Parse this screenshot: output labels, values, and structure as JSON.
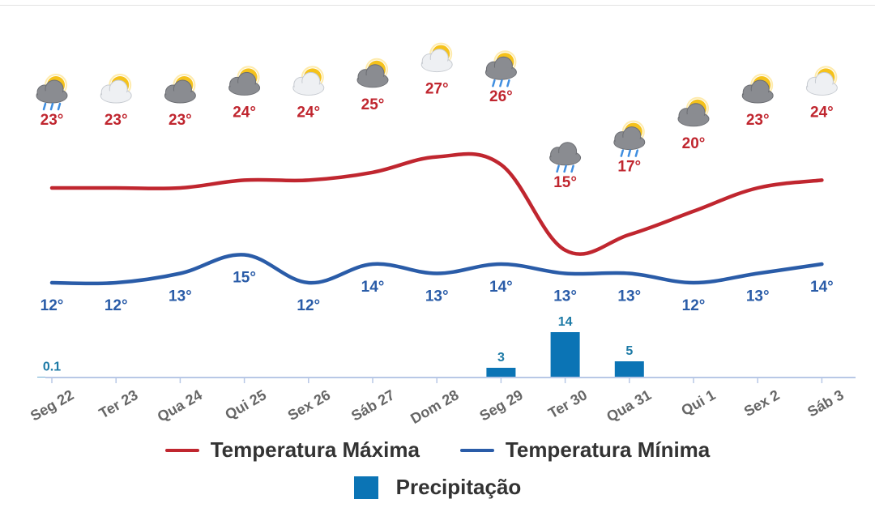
{
  "colors": {
    "max": "#c0262f",
    "min": "#2a5ca8",
    "precip": "#0b74b5",
    "precip_label": "#1d7aa6",
    "axis": "#b8c8e6",
    "tick_label": "#666666"
  },
  "legend": {
    "max_label": "Temperatura Máxima",
    "min_label": "Temperatura Mínima",
    "precip_label": "Precipitação"
  },
  "chart_data": {
    "type": "line",
    "categories": [
      "Seg 22",
      "Ter 23",
      "Qua 24",
      "Qui 25",
      "Sex 26",
      "Sáb 27",
      "Dom 28",
      "Seg 29",
      "Ter 30",
      "Qua 31",
      "Qui 1",
      "Sex 2",
      "Sáb 3"
    ],
    "series": [
      {
        "name": "Temperatura Máxima",
        "values": [
          23,
          23,
          23,
          24,
          24,
          25,
          27,
          26,
          15,
          17,
          20,
          23,
          24
        ],
        "labels": [
          "23°",
          "23°",
          "23°",
          "24°",
          "24°",
          "25°",
          "27°",
          "26°",
          "15°",
          "17°",
          "20°",
          "23°",
          "24°"
        ]
      },
      {
        "name": "Temperatura Mínima",
        "values": [
          12,
          12,
          13,
          15,
          12,
          14,
          13,
          14,
          13,
          13,
          12,
          13,
          14
        ],
        "labels": [
          "12°",
          "12°",
          "13°",
          "15°",
          "12°",
          "14°",
          "13°",
          "14°",
          "13°",
          "13°",
          "12°",
          "13°",
          "14°"
        ]
      },
      {
        "name": "Precipitação",
        "type": "bar",
        "values": [
          0.1,
          0,
          0,
          0,
          0,
          0,
          0,
          3,
          14,
          5,
          0,
          0,
          0
        ],
        "labels": [
          "0.1",
          "",
          "",
          "",
          "",
          "",
          "",
          "3",
          "14",
          "5",
          "",
          "",
          ""
        ]
      }
    ],
    "icons": [
      "sun-cloud-rain-icon",
      "sun-cloud-icon",
      "sun-dark-cloud-icon",
      "sun-dark-cloud-icon",
      "sun-cloud-icon",
      "sun-dark-cloud-icon",
      "sun-cloud-icon",
      "sun-cloud-rain-icon",
      "cloud-rain-icon",
      "sun-cloud-rain-icon",
      "sun-dark-cloud-icon",
      "sun-dark-cloud-icon",
      "sun-cloud-icon"
    ],
    "grid": false,
    "legend_position": "bottom"
  }
}
